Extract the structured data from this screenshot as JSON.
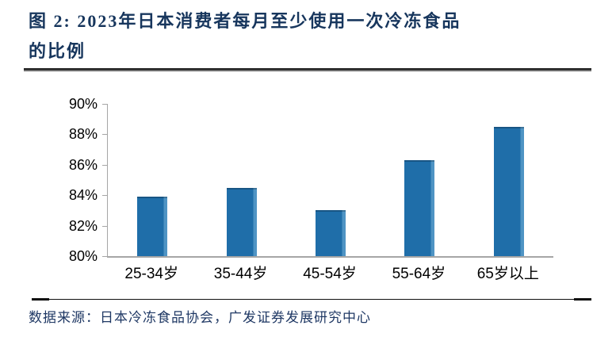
{
  "figure": {
    "title_line1": "图 2: 2023年日本消费者每月至少使用一次冷冻食品",
    "title_line2": "的比例",
    "title_color": "#17365d"
  },
  "chart_data": {
    "type": "bar",
    "title": "2023年日本消费者每月至少使用一次冷冻食品的比例",
    "categories": [
      "25-34岁",
      "35-44岁",
      "45-54岁",
      "55-64岁",
      "65岁以上"
    ],
    "values": [
      83.9,
      84.5,
      83.0,
      86.3,
      88.5
    ],
    "unit": "%",
    "xlabel": "",
    "ylabel": "",
    "ylim": [
      80,
      90
    ],
    "y_ticks": [
      "90%",
      "88%",
      "86%",
      "84%",
      "82%",
      "80%"
    ],
    "grid": false,
    "legend": false,
    "bar_color": "#1f6ea9",
    "bar_highlight_color": "#4f94c4",
    "axis_color": "#a6a6a6"
  },
  "footer": {
    "source_text": "数据来源：日本冷冻食品协会，广发证券发展研究中心",
    "source_color": "#1f3864"
  }
}
